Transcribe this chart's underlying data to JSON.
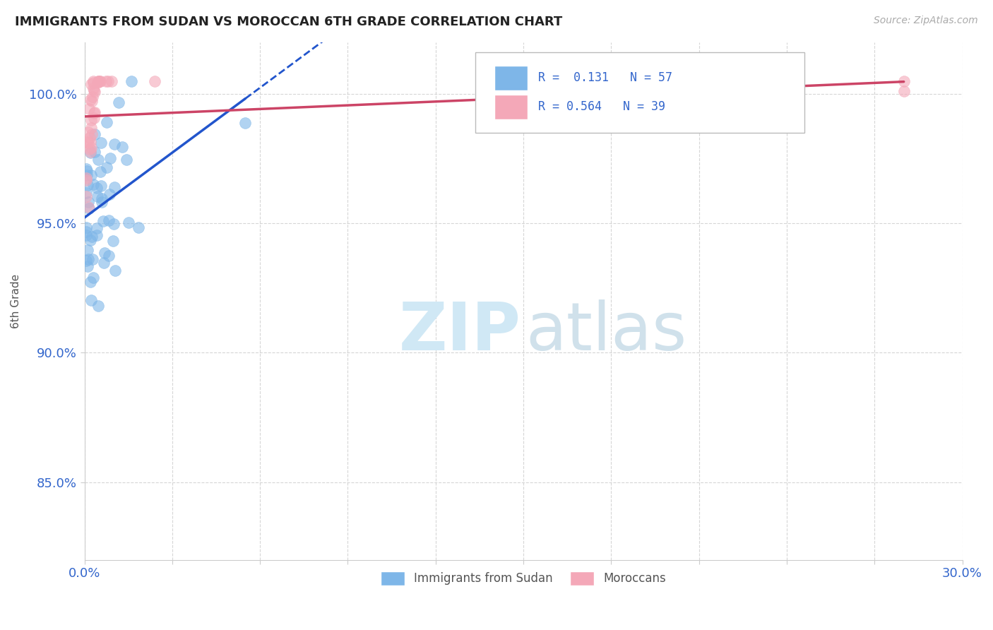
{
  "title": "IMMIGRANTS FROM SUDAN VS MOROCCAN 6TH GRADE CORRELATION CHART",
  "source": "Source: ZipAtlas.com",
  "ylabel": "6th Grade",
  "xlim": [
    0.0,
    0.3
  ],
  "ylim": [
    0.82,
    1.02
  ],
  "sudan_R": 0.131,
  "sudan_N": 57,
  "moroccan_R": 0.564,
  "moroccan_N": 39,
  "sudan_color": "#7eb6e8",
  "moroccan_color": "#f4a8b8",
  "sudan_line_color": "#2255cc",
  "moroccan_line_color": "#cc4466",
  "background_color": "#ffffff",
  "grid_color": "#cccccc",
  "watermark_color": "#d0e8f5"
}
